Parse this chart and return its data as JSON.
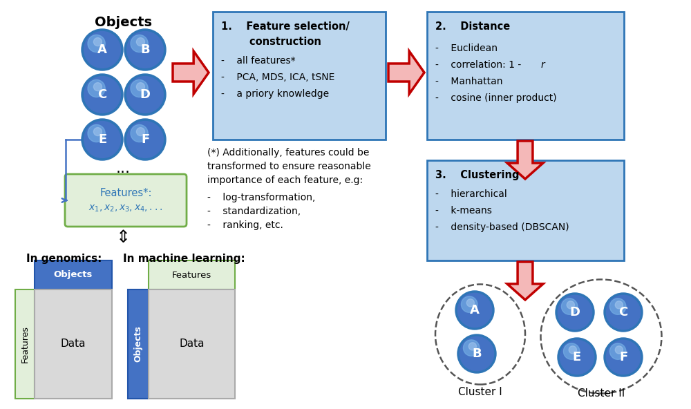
{
  "bg_color": "#ffffff",
  "ball_color_top": "#5b9bd5",
  "ball_color_mid": "#2e75b6",
  "ball_text_color": "#ffffff",
  "features_box_color": "#e2efda",
  "features_box_edge": "#70ad47",
  "box_color": "#bdd7ee",
  "box_edge": "#2e75b6",
  "arrow_edge": "#c00000",
  "arrow_face": "#f4b8b8",
  "note_text_line1": "(*) Additionally, features could be",
  "note_text_line2": "transformed to ensure reasonable",
  "note_text_line3": "importance of each feature, e.g:",
  "note_bullet1": "-    log-transformation,",
  "note_bullet2": "-    standardization,",
  "note_bullet3": "-    ranking, etc.",
  "box1_title1": "1.    Feature selection/",
  "box1_title2": "        construction",
  "box1_item1": "-    all features*",
  "box1_item2": "-    PCA, MDS, ICA, tSNE",
  "box1_item3": "-    a priory knowledge",
  "box2_title": "2.    Distance",
  "box2_item1": "-    Euclidean",
  "box2_item2": "-    correlation: 1 - ",
  "box2_item2r": "r",
  "box2_item3": "-    Manhattan",
  "box2_item4": "-    cosine (inner product)",
  "box3_title": "3.    Clustering",
  "box3_item1": "-    hierarchical",
  "box3_item2": "-    k-means",
  "box3_item3": "-    density-based (DBSCAN)",
  "objects_label": "Objects",
  "cluster1_label": "Cluster I",
  "cluster2_label": "Cluster II",
  "genomics_label": "In genomics:",
  "ml_label": "In machine learning:",
  "connector_color": "#4472c4",
  "dashed_circle_color": "#555555",
  "data_box_color": "#d9d9d9",
  "data_box_edge": "#aaaaaa"
}
